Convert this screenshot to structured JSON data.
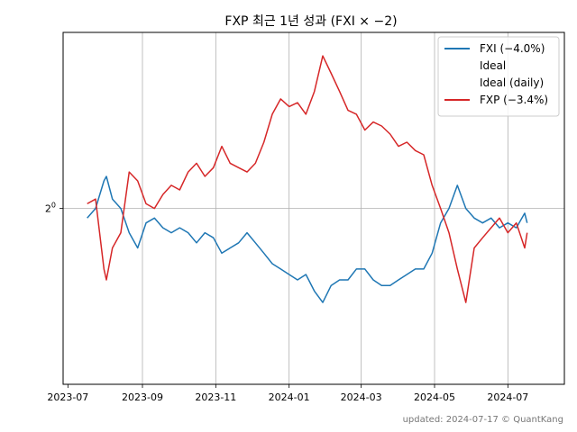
{
  "chart_data": {
    "type": "line",
    "title": "FXP 최근 1년 성과 (FXI × −2)",
    "xlabel": "",
    "ylabel": "",
    "x_ticks": [
      "2023-07",
      "2023-09",
      "2023-11",
      "2024-01",
      "2024-03",
      "2024-05",
      "2024-07"
    ],
    "y_ticks": [
      {
        "value": 1,
        "label_base": "2",
        "label_exp": "0"
      }
    ],
    "y_scale": "log2",
    "ylim": [
      0.69,
      1.45
    ],
    "xlim": [
      "2023-06-27",
      "2024-08-17"
    ],
    "grid": true,
    "legend_position": "top-right",
    "legend": [
      {
        "label": "FXI (−4.0%)",
        "color": "#1f77b4",
        "visible": true
      },
      {
        "label": "Ideal",
        "color": "none",
        "visible": false
      },
      {
        "label": "Ideal (daily)",
        "color": "none",
        "visible": false
      },
      {
        "label": "FXP (−3.4%)",
        "color": "#d62728",
        "visible": true
      }
    ],
    "series": [
      {
        "name": "FXI (−4.0%)",
        "color": "#1f77b4",
        "x": [
          "2023-07-17",
          "2023-07-24",
          "2023-07-31",
          "2023-08-02",
          "2023-08-07",
          "2023-08-14",
          "2023-08-21",
          "2023-08-28",
          "2023-09-04",
          "2023-09-11",
          "2023-09-18",
          "2023-09-25",
          "2023-10-02",
          "2023-10-09",
          "2023-10-16",
          "2023-10-23",
          "2023-10-30",
          "2023-11-06",
          "2023-11-13",
          "2023-11-20",
          "2023-11-27",
          "2023-12-04",
          "2023-12-11",
          "2023-12-18",
          "2023-12-25",
          "2024-01-01",
          "2024-01-08",
          "2024-01-15",
          "2024-01-22",
          "2024-01-29",
          "2024-02-05",
          "2024-02-12",
          "2024-02-19",
          "2024-02-26",
          "2024-03-04",
          "2024-03-11",
          "2024-03-18",
          "2024-03-25",
          "2024-04-01",
          "2024-04-08",
          "2024-04-15",
          "2024-04-22",
          "2024-04-29",
          "2024-05-06",
          "2024-05-13",
          "2024-05-20",
          "2024-05-27",
          "2024-06-03",
          "2024-06-10",
          "2024-06-17",
          "2024-06-24",
          "2024-07-01",
          "2024-07-08",
          "2024-07-15",
          "2024-07-17"
        ],
        "values": [
          0.98,
          1.0,
          1.06,
          1.07,
          1.02,
          1.0,
          0.95,
          0.92,
          0.97,
          0.98,
          0.96,
          0.95,
          0.96,
          0.95,
          0.93,
          0.95,
          0.94,
          0.91,
          0.92,
          0.93,
          0.95,
          0.93,
          0.91,
          0.89,
          0.88,
          0.87,
          0.86,
          0.87,
          0.84,
          0.82,
          0.85,
          0.86,
          0.86,
          0.88,
          0.88,
          0.86,
          0.85,
          0.85,
          0.86,
          0.87,
          0.88,
          0.88,
          0.91,
          0.97,
          1.0,
          1.05,
          1.0,
          0.98,
          0.97,
          0.98,
          0.96,
          0.97,
          0.96,
          0.99,
          0.97
        ]
      },
      {
        "name": "FXP (−3.4%)",
        "color": "#d62728",
        "x": [
          "2023-07-17",
          "2023-07-24",
          "2023-07-31",
          "2023-08-02",
          "2023-08-07",
          "2023-08-14",
          "2023-08-21",
          "2023-08-28",
          "2023-09-04",
          "2023-09-11",
          "2023-09-18",
          "2023-09-25",
          "2023-10-02",
          "2023-10-09",
          "2023-10-16",
          "2023-10-23",
          "2023-10-30",
          "2023-11-06",
          "2023-11-13",
          "2023-11-20",
          "2023-11-27",
          "2023-12-04",
          "2023-12-11",
          "2023-12-18",
          "2023-12-25",
          "2024-01-01",
          "2024-01-08",
          "2024-01-15",
          "2024-01-22",
          "2024-01-29",
          "2024-02-05",
          "2024-02-12",
          "2024-02-19",
          "2024-02-26",
          "2024-03-04",
          "2024-03-11",
          "2024-03-18",
          "2024-03-25",
          "2024-04-01",
          "2024-04-08",
          "2024-04-15",
          "2024-04-22",
          "2024-04-29",
          "2024-05-06",
          "2024-05-13",
          "2024-05-20",
          "2024-05-27",
          "2024-06-03",
          "2024-06-10",
          "2024-06-17",
          "2024-06-24",
          "2024-07-01",
          "2024-07-08",
          "2024-07-15",
          "2024-07-17"
        ],
        "values": [
          1.01,
          1.02,
          0.88,
          0.86,
          0.92,
          0.95,
          1.08,
          1.06,
          1.01,
          1.0,
          1.03,
          1.05,
          1.04,
          1.08,
          1.1,
          1.07,
          1.09,
          1.14,
          1.1,
          1.09,
          1.08,
          1.1,
          1.15,
          1.22,
          1.26,
          1.24,
          1.25,
          1.22,
          1.28,
          1.38,
          1.33,
          1.28,
          1.23,
          1.22,
          1.18,
          1.2,
          1.19,
          1.17,
          1.14,
          1.15,
          1.13,
          1.12,
          1.05,
          1.0,
          0.95,
          0.88,
          0.82,
          0.92,
          0.94,
          0.96,
          0.98,
          0.95,
          0.97,
          0.92,
          0.95
        ]
      }
    ]
  },
  "footer_text": "updated: 2024-07-17 © QuantKang"
}
